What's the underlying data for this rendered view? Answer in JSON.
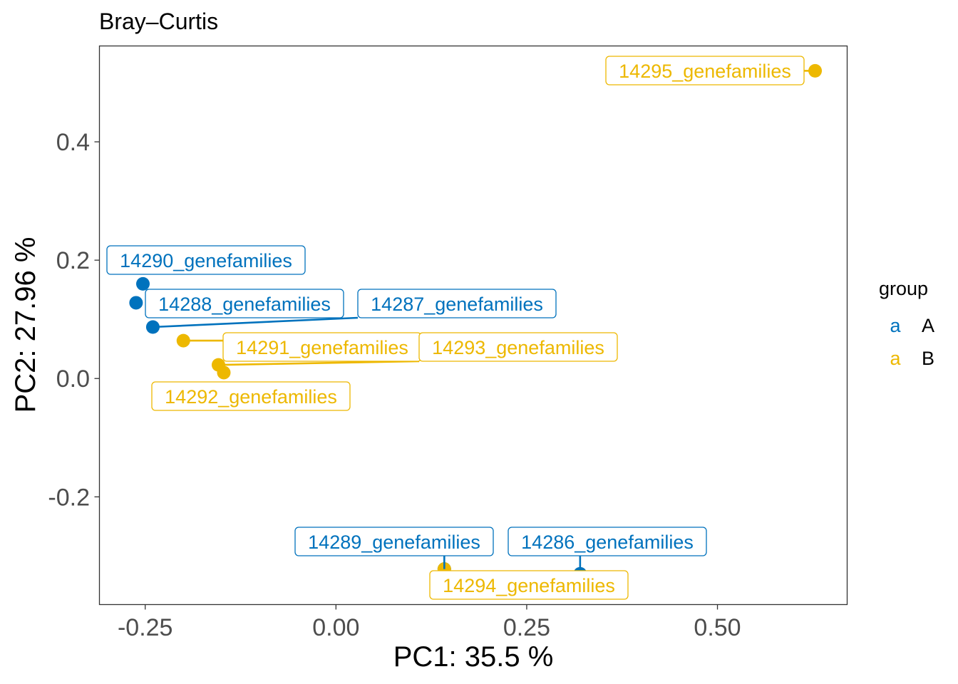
{
  "chart_data": {
    "type": "scatter",
    "title": "Bray–Curtis",
    "xlabel": "PC1: 35.5 %",
    "ylabel": "PC2: 27.96 %",
    "xlim": [
      -0.31,
      0.67
    ],
    "ylim": [
      -0.382,
      0.562
    ],
    "x_ticks": [
      -0.25,
      0.0,
      0.25,
      0.5
    ],
    "x_tick_labels": [
      "-0.25",
      "0.00",
      "0.25",
      "0.50"
    ],
    "y_ticks": [
      -0.2,
      0.0,
      0.2,
      0.4
    ],
    "y_tick_labels": [
      "-0.2",
      "0.0",
      "0.2",
      "0.4"
    ],
    "grid": false,
    "legend": {
      "title": "group",
      "position": "right",
      "key_glyph": "a",
      "entries": [
        {
          "name": "A",
          "color": "#0072bd"
        },
        {
          "name": "B",
          "color": "#edb800"
        }
      ]
    },
    "series": [
      {
        "name": "A",
        "color": "#0072bd",
        "points": [
          {
            "label": "14290_genefamilies",
            "x": -0.253,
            "y": 0.16
          },
          {
            "label": "14288_genefamilies",
            "x": -0.262,
            "y": 0.128
          },
          {
            "label": "14287_genefamilies",
            "x": -0.24,
            "y": 0.087
          },
          {
            "label": "14289_genefamilies",
            "x": 0.142,
            "y": -0.322
          },
          {
            "label": "14286_genefamilies",
            "x": 0.32,
            "y": -0.33
          }
        ]
      },
      {
        "name": "B",
        "color": "#edb800",
        "points": [
          {
            "label": "14295_genefamilies",
            "x": 0.628,
            "y": 0.52
          },
          {
            "label": "14291_genefamilies",
            "x": -0.2,
            "y": 0.064
          },
          {
            "label": "14293_genefamilies",
            "x": -0.154,
            "y": 0.023
          },
          {
            "label": "14292_genefamilies",
            "x": -0.147,
            "y": 0.01
          },
          {
            "label": "14294_genefamilies",
            "x": 0.142,
            "y": -0.322
          }
        ]
      }
    ]
  }
}
